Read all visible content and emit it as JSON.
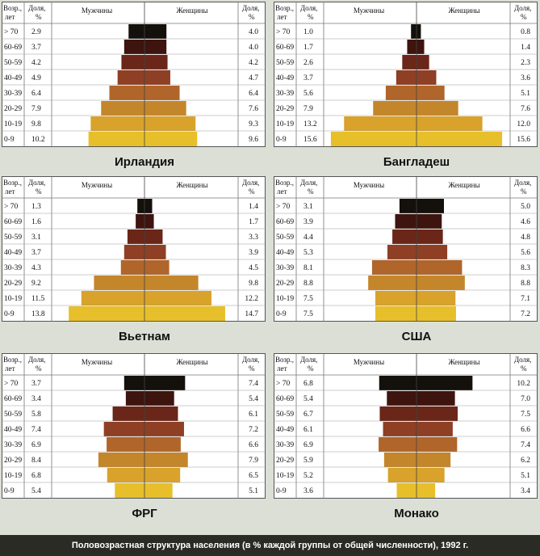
{
  "caption": "Половозрастная структура населения (в % каждой группы от общей численности), 1992 г.",
  "header": {
    "age_l1": "Возр.,",
    "age_l2": "лет",
    "share_l1": "Доля,",
    "share_l2": "%",
    "men": "Мужчины",
    "women": "Женщины"
  },
  "colors": [
    "#e6bf2b",
    "#d8a22b",
    "#c4862a",
    "#b0652a",
    "#8e3f24",
    "#6a2618",
    "#3e140e",
    "#14100c"
  ],
  "chart_data": [
    {
      "type": "bar",
      "title": "Ирландия",
      "categories": [
        "> 70",
        "60-69",
        "50-59",
        "40-49",
        "30-39",
        "20-29",
        "10-19",
        "0-9"
      ],
      "series": [
        {
          "name": "Мужчины",
          "values": [
            2.9,
            3.7,
            4.2,
            4.9,
            6.4,
            7.9,
            9.8,
            10.2
          ]
        },
        {
          "name": "Женщины",
          "values": [
            4.0,
            4.0,
            4.2,
            4.7,
            6.4,
            7.6,
            9.3,
            9.6
          ]
        }
      ]
    },
    {
      "type": "bar",
      "title": "Бангладеш",
      "categories": [
        "> 70",
        "60-69",
        "50-59",
        "40-49",
        "30-39",
        "20-29",
        "10-19",
        "0-9"
      ],
      "series": [
        {
          "name": "Мужчины",
          "values": [
            1.0,
            1.7,
            2.6,
            3.7,
            5.6,
            7.9,
            13.2,
            15.6
          ]
        },
        {
          "name": "Женщины",
          "values": [
            0.8,
            1.4,
            2.3,
            3.6,
            5.1,
            7.6,
            12.0,
            15.6
          ]
        }
      ]
    },
    {
      "type": "bar",
      "title": "Вьетнам",
      "categories": [
        "> 70",
        "60-69",
        "50-59",
        "40-49",
        "30-39",
        "20-29",
        "10-19",
        "0-9"
      ],
      "series": [
        {
          "name": "Мужчины",
          "values": [
            1.3,
            1.6,
            3.1,
            3.7,
            4.3,
            9.2,
            11.5,
            13.8
          ]
        },
        {
          "name": "Женщины",
          "values": [
            1.4,
            1.7,
            3.3,
            3.9,
            4.5,
            9.8,
            12.2,
            14.7
          ]
        }
      ]
    },
    {
      "type": "bar",
      "title": "США",
      "categories": [
        "> 70",
        "60-69",
        "50-59",
        "40-49",
        "30-39",
        "20-29",
        "10-19",
        "0-9"
      ],
      "series": [
        {
          "name": "Мужчины",
          "values": [
            3.1,
            3.9,
            4.4,
            5.3,
            8.1,
            8.8,
            7.5,
            7.5
          ]
        },
        {
          "name": "Женщины",
          "values": [
            5.0,
            4.6,
            4.8,
            5.6,
            8.3,
            8.8,
            7.1,
            7.2
          ]
        }
      ]
    },
    {
      "type": "bar",
      "title": "ФРГ",
      "categories": [
        "> 70",
        "60-69",
        "50-59",
        "40-49",
        "30-39",
        "20-29",
        "10-19",
        "0-9"
      ],
      "series": [
        {
          "name": "Мужчины",
          "values": [
            3.7,
            3.4,
            5.8,
            7.4,
            6.9,
            8.4,
            6.8,
            5.4
          ]
        },
        {
          "name": "Женщины",
          "values": [
            7.4,
            5.4,
            6.1,
            7.2,
            6.6,
            7.9,
            6.5,
            5.1
          ]
        }
      ]
    },
    {
      "type": "bar",
      "title": "Монако",
      "categories": [
        "> 70",
        "60-69",
        "50-59",
        "40-49",
        "30-39",
        "20-29",
        "10-19",
        "0-9"
      ],
      "series": [
        {
          "name": "Мужчины",
          "values": [
            6.8,
            5.4,
            6.7,
            6.1,
            6.9,
            5.9,
            5.2,
            3.6
          ]
        },
        {
          "name": "Женщины",
          "values": [
            10.2,
            7.0,
            7.5,
            6.6,
            7.4,
            6.2,
            5.1,
            3.4
          ]
        }
      ]
    }
  ]
}
